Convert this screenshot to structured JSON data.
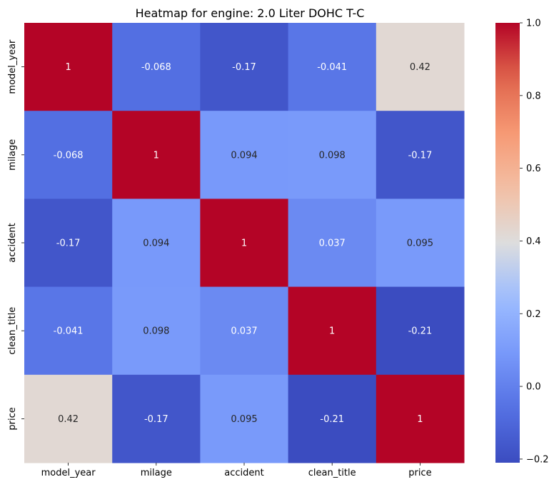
{
  "chart_data": {
    "type": "heatmap",
    "title": "Heatmap for engine: 2.0 Liter DOHC T-C",
    "xlabel": "",
    "ylabel": "",
    "x_categories": [
      "model_year",
      "milage",
      "accident",
      "clean_title",
      "price"
    ],
    "y_categories": [
      "model_year",
      "milage",
      "accident",
      "clean_title",
      "price"
    ],
    "values": [
      [
        1,
        -0.068,
        -0.17,
        -0.041,
        0.42
      ],
      [
        -0.068,
        1,
        0.094,
        0.098,
        -0.17
      ],
      [
        -0.17,
        0.094,
        1,
        0.037,
        0.095
      ],
      [
        -0.041,
        0.098,
        0.037,
        1,
        -0.21
      ],
      [
        0.42,
        -0.17,
        0.095,
        -0.21,
        1
      ]
    ],
    "value_labels": [
      [
        "1",
        "-0.068",
        "-0.17",
        "-0.041",
        "0.42"
      ],
      [
        "-0.068",
        "1",
        "0.094",
        "0.098",
        "-0.17"
      ],
      [
        "-0.17",
        "0.094",
        "1",
        "0.037",
        "0.095"
      ],
      [
        "-0.041",
        "0.098",
        "0.037",
        "1",
        "-0.21"
      ],
      [
        "0.42",
        "-0.17",
        "0.095",
        "-0.21",
        "1"
      ]
    ],
    "colormap": "coolwarm",
    "vmin": -0.21,
    "vmax": 1,
    "colorbar": {
      "ticks": [
        -0.2,
        0,
        0.2,
        0.4,
        0.6,
        0.8,
        1
      ],
      "tick_labels": [
        "−0.2",
        "0.0",
        "0.2",
        "0.4",
        "0.6",
        "0.8",
        "1.0"
      ]
    },
    "annotation_colors": {
      "light": "#ffffff",
      "dark": "#262626"
    },
    "colors": {
      "background": "#ffffff",
      "text": "#000000"
    }
  }
}
